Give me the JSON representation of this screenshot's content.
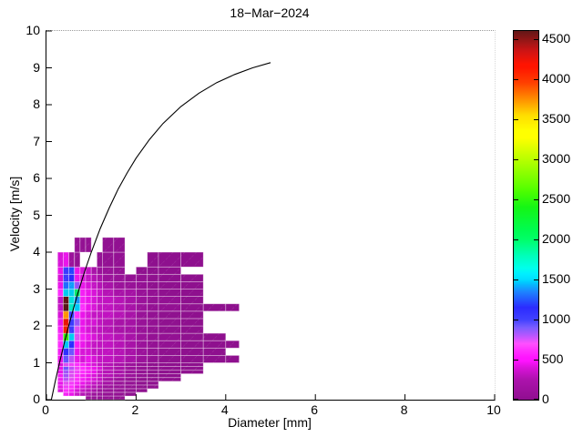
{
  "figure": {
    "title": "18−Mar−2024",
    "xlabel": "Diameter [mm]",
    "ylabel": "Velocity [m/s]"
  },
  "chart_data": {
    "type": "heatmap",
    "title": "18−Mar−2024",
    "xlabel": "Diameter [mm]",
    "ylabel": "Velocity [m/s]",
    "xlim": [
      0,
      10
    ],
    "ylim": [
      0,
      10
    ],
    "xticks": [
      0,
      2,
      4,
      6,
      8,
      10
    ],
    "yticks": [
      0,
      1,
      2,
      3,
      4,
      5,
      6,
      7,
      8,
      9,
      10
    ],
    "grid": false,
    "legend_position": "none",
    "colorbar": {
      "min": 0,
      "max": 4600,
      "ticks": [
        0,
        500,
        1000,
        1500,
        2000,
        2500,
        3000,
        3500,
        4000,
        4500
      ],
      "colormap_stops": [
        [
          0,
          "#7E0E7E"
        ],
        [
          250,
          "#981298"
        ],
        [
          400,
          "#C013C0"
        ],
        [
          520,
          "#EE14EE"
        ],
        [
          620,
          "#FF30FF"
        ],
        [
          700,
          "#E24BF2"
        ],
        [
          800,
          "#A450F8"
        ],
        [
          900,
          "#6E55FF"
        ],
        [
          1000,
          "#3C3CFF"
        ],
        [
          1150,
          "#2828FF"
        ],
        [
          1350,
          "#1E78FF"
        ],
        [
          1500,
          "#00C8F5"
        ],
        [
          1650,
          "#00E8D2"
        ],
        [
          1800,
          "#00EFA8"
        ],
        [
          2000,
          "#00E462"
        ],
        [
          2400,
          "#1ADD1A"
        ],
        [
          2700,
          "#64E800"
        ],
        [
          3000,
          "#AAF000"
        ],
        [
          3300,
          "#EEF000"
        ],
        [
          3550,
          "#FFC800"
        ],
        [
          3750,
          "#FF8200"
        ],
        [
          3950,
          "#FF3C00"
        ],
        [
          4150,
          "#E81400"
        ],
        [
          4350,
          "#B41414"
        ],
        [
          4600,
          "#571616"
        ]
      ]
    },
    "curve": {
      "name": "terminal velocity curve",
      "color": "#000000",
      "points": [
        [
          0.11,
          0.0
        ],
        [
          0.2,
          0.51
        ],
        [
          0.3,
          1.05
        ],
        [
          0.4,
          1.55
        ],
        [
          0.5,
          2.02
        ],
        [
          0.6,
          2.46
        ],
        [
          0.7,
          2.88
        ],
        [
          0.85,
          3.47
        ],
        [
          1.0,
          4.0
        ],
        [
          1.2,
          4.64
        ],
        [
          1.4,
          5.2
        ],
        [
          1.6,
          5.71
        ],
        [
          1.8,
          6.15
        ],
        [
          2.0,
          6.55
        ],
        [
          2.3,
          7.06
        ],
        [
          2.6,
          7.49
        ],
        [
          3.0,
          7.95
        ],
        [
          3.4,
          8.31
        ],
        [
          3.8,
          8.6
        ],
        [
          4.2,
          8.82
        ],
        [
          4.6,
          9.0
        ],
        [
          5.0,
          9.14
        ]
      ]
    },
    "heatmap": {
      "d_edges": [
        0.25,
        0.375,
        0.5,
        0.625,
        0.75,
        0.875,
        1.0,
        1.125,
        1.25,
        1.5,
        1.75,
        2.0,
        2.25,
        2.5,
        3.0,
        3.5,
        4.0,
        4.3
      ],
      "rows": [
        {
          "v": [
            0.0,
            0.1
          ],
          "values": [
            null,
            null,
            null,
            null,
            null,
            220,
            220,
            200,
            200,
            160,
            null,
            null,
            null,
            null,
            null,
            null,
            null
          ]
        },
        {
          "v": [
            0.1,
            0.2
          ],
          "values": [
            null,
            560,
            510,
            420,
            360,
            310,
            260,
            250,
            210,
            200,
            160,
            null,
            null,
            null,
            null,
            null,
            null
          ]
        },
        {
          "v": [
            0.2,
            0.3
          ],
          "values": [
            460,
            610,
            560,
            460,
            410,
            360,
            310,
            260,
            250,
            210,
            200,
            150,
            null,
            null,
            null,
            null,
            null
          ]
        },
        {
          "v": [
            0.3,
            0.4
          ],
          "values": [
            500,
            660,
            610,
            510,
            460,
            410,
            360,
            310,
            260,
            250,
            200,
            160,
            150,
            null,
            null,
            null,
            null
          ]
        },
        {
          "v": [
            0.4,
            0.5
          ],
          "values": [
            510,
            700,
            650,
            560,
            510,
            460,
            410,
            360,
            300,
            250,
            210,
            160,
            150,
            null,
            null,
            null,
            null
          ]
        },
        {
          "v": [
            0.5,
            0.6
          ],
          "values": [
            550,
            760,
            700,
            610,
            560,
            510,
            460,
            410,
            310,
            260,
            210,
            160,
            150,
            150,
            null,
            null,
            null
          ]
        },
        {
          "v": [
            0.6,
            0.7
          ],
          "values": [
            550,
            800,
            710,
            610,
            560,
            510,
            460,
            410,
            360,
            310,
            260,
            200,
            150,
            150,
            null,
            null,
            null
          ]
        },
        {
          "v": [
            0.7,
            0.8
          ],
          "values": [
            510,
            810,
            710,
            660,
            610,
            560,
            510,
            410,
            360,
            310,
            260,
            200,
            160,
            150,
            150,
            null,
            null
          ]
        },
        {
          "v": [
            0.8,
            0.9
          ],
          "values": [
            500,
            900,
            760,
            660,
            610,
            560,
            510,
            460,
            360,
            310,
            260,
            210,
            160,
            150,
            150,
            null,
            null
          ]
        },
        {
          "v": [
            0.9,
            1.0
          ],
          "values": [
            460,
            710,
            660,
            610,
            560,
            510,
            460,
            410,
            360,
            310,
            260,
            210,
            160,
            150,
            150,
            null,
            null
          ]
        },
        {
          "v": [
            1.0,
            1.2
          ],
          "values": [
            510,
            920,
            760,
            510,
            460,
            510,
            460,
            410,
            400,
            360,
            310,
            260,
            210,
            160,
            150,
            150,
            150
          ]
        },
        {
          "v": [
            1.2,
            1.4
          ],
          "values": [
            560,
            1100,
            900,
            510,
            460,
            460,
            410,
            400,
            400,
            360,
            310,
            260,
            210,
            160,
            150,
            150,
            null
          ]
        },
        {
          "v": [
            1.4,
            1.6
          ],
          "values": [
            610,
            1500,
            1120,
            560,
            510,
            460,
            410,
            400,
            400,
            360,
            310,
            260,
            210,
            200,
            160,
            150,
            150
          ]
        },
        {
          "v": [
            1.6,
            1.8
          ],
          "values": [
            610,
            2500,
            1520,
            710,
            560,
            510,
            460,
            410,
            400,
            360,
            310,
            260,
            210,
            200,
            160,
            150,
            null
          ]
        },
        {
          "v": [
            1.8,
            2.0
          ],
          "values": [
            560,
            4100,
            1010,
            710,
            510,
            460,
            410,
            400,
            360,
            310,
            300,
            250,
            200,
            160,
            150,
            null,
            null
          ]
        },
        {
          "v": [
            2.0,
            2.2
          ],
          "values": [
            510,
            4150,
            1010,
            820,
            510,
            460,
            450,
            400,
            360,
            310,
            300,
            250,
            200,
            160,
            150,
            null,
            null
          ]
        },
        {
          "v": [
            2.2,
            2.4
          ],
          "values": [
            460,
            3700,
            1010,
            610,
            510,
            460,
            410,
            400,
            400,
            360,
            310,
            250,
            200,
            160,
            150,
            null,
            null
          ]
        },
        {
          "v": [
            2.4,
            2.6
          ],
          "values": [
            410,
            4600,
            1700,
            1500,
            610,
            510,
            460,
            410,
            400,
            360,
            310,
            260,
            210,
            200,
            160,
            150,
            150
          ]
        },
        {
          "v": [
            2.6,
            2.8
          ],
          "values": [
            410,
            4580,
            1620,
            1400,
            560,
            510,
            460,
            410,
            400,
            360,
            310,
            260,
            210,
            200,
            150,
            null,
            null
          ]
        },
        {
          "v": [
            2.8,
            3.0
          ],
          "values": [
            610,
            1520,
            1520,
            2000,
            560,
            510,
            460,
            410,
            360,
            310,
            300,
            250,
            200,
            160,
            150,
            null,
            null
          ]
        },
        {
          "v": [
            3.0,
            3.2
          ],
          "values": [
            510,
            1320,
            1420,
            820,
            510,
            460,
            410,
            360,
            310,
            260,
            250,
            210,
            160,
            150,
            150,
            null,
            null
          ]
        },
        {
          "v": [
            3.2,
            3.4
          ],
          "values": [
            460,
            1010,
            1120,
            510,
            460,
            410,
            360,
            310,
            260,
            250,
            210,
            200,
            160,
            150,
            150,
            null,
            null
          ]
        },
        {
          "v": [
            3.4,
            3.6
          ],
          "values": [
            510,
            1010,
            1220,
            510,
            460,
            410,
            310,
            260,
            250,
            210,
            null,
            160,
            150,
            150,
            null,
            null,
            null
          ]
        },
        {
          "v": [
            3.6,
            4.0
          ],
          "values": [
            460,
            510,
            260,
            210,
            null,
            null,
            null,
            210,
            200,
            200,
            null,
            null,
            150,
            150,
            150,
            null,
            null
          ]
        },
        {
          "v": [
            4.0,
            4.4
          ],
          "values": [
            null,
            null,
            null,
            210,
            200,
            200,
            null,
            null,
            190,
            180,
            null,
            null,
            null,
            null,
            null,
            null,
            null
          ]
        }
      ]
    }
  }
}
